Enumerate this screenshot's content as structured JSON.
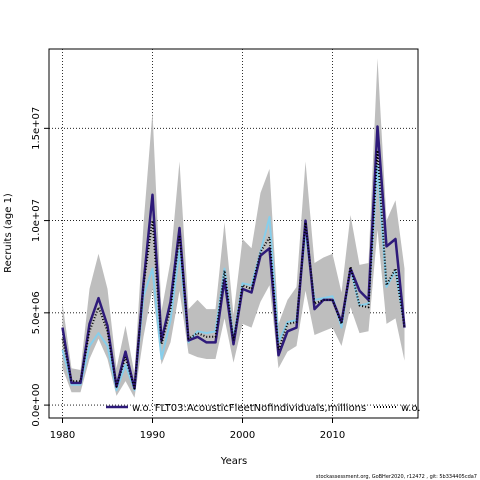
{
  "chart_data": {
    "type": "line",
    "xlabel": "Years",
    "ylabel": "Recruits (age 1)",
    "xlim": [
      1978.5,
      2019.5
    ],
    "ylim": [
      -700000,
      19300000
    ],
    "x_ticks": [
      1980,
      1990,
      2000,
      2010
    ],
    "x_tick_labels": [
      "1980",
      "1990",
      "2000",
      "2010"
    ],
    "y_ticks": [
      0,
      5000000,
      10000000,
      15000000
    ],
    "y_tick_labels": [
      "0.0e+00",
      "5.0e+06",
      "1.0e+07",
      "1.5e+07"
    ],
    "grid": true,
    "legend_placement": "bottom",
    "x": [
      1980,
      1981,
      1982,
      1983,
      1984,
      1985,
      1986,
      1987,
      1988,
      1989,
      1990,
      1991,
      1992,
      1993,
      1994,
      1995,
      1996,
      1997,
      1998,
      1999,
      2000,
      2001,
      2002,
      2003,
      2004,
      2005,
      2006,
      2007,
      2008,
      2009,
      2010,
      2011,
      2012,
      2013,
      2014,
      2015,
      2016,
      2017,
      2018
    ],
    "ci_band": {
      "upper": [
        5500000,
        2000000,
        1900000,
        6300000,
        8200000,
        6300000,
        2000000,
        4300000,
        1700000,
        9800000,
        15900000,
        5100000,
        7800000,
        13200000,
        5200000,
        5700000,
        5200000,
        5200000,
        9900000,
        4900000,
        9000000,
        8500000,
        11500000,
        12800000,
        4400000,
        5700000,
        6400000,
        13200000,
        7700000,
        8000000,
        8200000,
        6100000,
        10300000,
        7600000,
        7700000,
        18800000,
        10000000,
        11100000,
        7400000
      ],
      "lower": [
        2000000,
        700000,
        700000,
        2500000,
        3600000,
        2500000,
        500000,
        1300000,
        400000,
        3700000,
        6300000,
        2200000,
        3400000,
        6200000,
        2800000,
        2600000,
        2500000,
        2500000,
        4700000,
        2300000,
        4400000,
        4200000,
        5600000,
        6500000,
        2000000,
        2900000,
        3200000,
        6200000,
        3800000,
        4000000,
        4200000,
        3200000,
        5300000,
        3900000,
        4000000,
        9500000,
        4400000,
        4700000,
        2400000
      ]
    },
    "series": [
      {
        "name": "w.o. FLT03:AcousticFleetNofindividuals,millions",
        "values": [
          4200000,
          1200000,
          1200000,
          4400000,
          5800000,
          4300000,
          1000000,
          2900000,
          900000,
          6600000,
          11400000,
          3500000,
          5600000,
          9600000,
          3500000,
          3700000,
          3400000,
          3400000,
          6800000,
          3300000,
          6300000,
          6100000,
          8100000,
          8500000,
          2700000,
          4000000,
          4200000,
          10000000,
          5200000,
          5700000,
          5700000,
          4500000,
          7400000,
          6200000,
          5700000,
          15100000,
          8600000,
          9000000,
          4200000
        ]
      },
      {
        "name": "w.o.",
        "values": [
          3600000,
          1300000,
          1300000,
          4000000,
          5300000,
          4000000,
          1000000,
          2600000,
          900000,
          6500000,
          10000000,
          3300000,
          5200000,
          9200000,
          3600000,
          3900000,
          3700000,
          3700000,
          7300000,
          3500000,
          6500000,
          6300000,
          8300000,
          9100000,
          3000000,
          4400000,
          4500000,
          9900000,
          5500000,
          5700000,
          5700000,
          4400000,
          7500000,
          5400000,
          5300000,
          13800000,
          6500000,
          7400000,
          4200000
        ]
      },
      {
        "name": "",
        "values": [
          3000000,
          1100000,
          1100000,
          3200000,
          3900000,
          3200000,
          800000,
          2200000,
          800000,
          5900000,
          7400000,
          2500000,
          4600000,
          8400000,
          3400000,
          4000000,
          3900000,
          4000000,
          7400000,
          3600000,
          6600000,
          6500000,
          8300000,
          10200000,
          3400000,
          4500000,
          4600000,
          9400000,
          5700000,
          5800000,
          5900000,
          4200000,
          7400000,
          5400000,
          5500000,
          13000000,
          6400000,
          7300000,
          4300000
        ]
      }
    ],
    "colors": {
      "band": "#bebebe",
      "series": [
        "#2e1a7a",
        "#000000",
        "#87ceeb"
      ]
    }
  },
  "credit": "stockassessment.org, GoBHer2020, r12472 , git: 5b334405cda7"
}
